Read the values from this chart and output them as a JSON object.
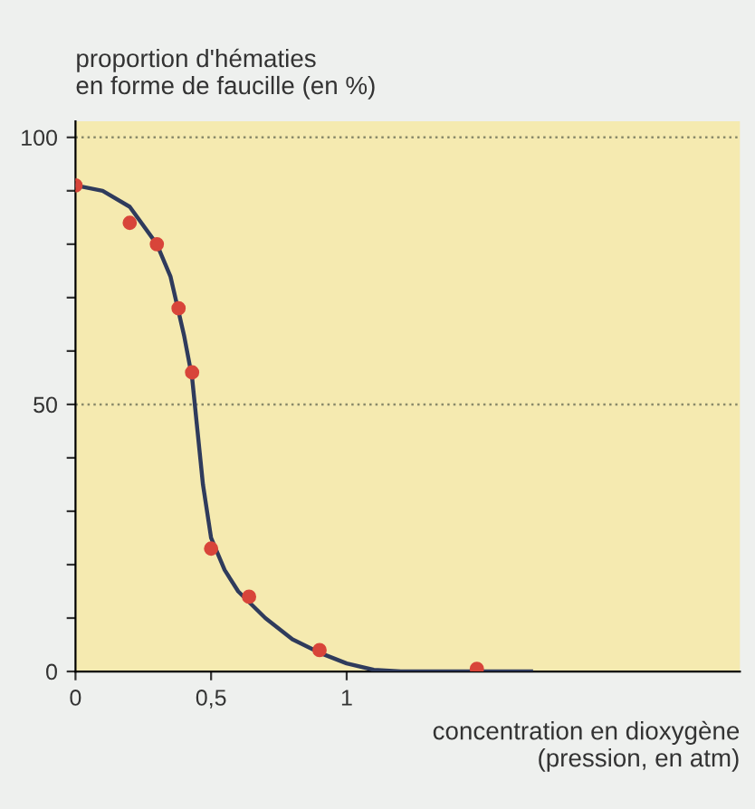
{
  "chart_data": {
    "type": "scatter",
    "ylabel": "proportion d'hématies\nen forme de faucille (en %)",
    "xlabel": "concentration en dioxygène\n(pression, en atm)",
    "xlim": [
      0,
      2.45
    ],
    "ylim": [
      0,
      103
    ],
    "xticks": [
      0,
      {
        "value": 0.5,
        "label": "0,5"
      },
      1
    ],
    "yticks": [
      0,
      {
        "value": 10,
        "label": null
      },
      {
        "value": 20,
        "label": null
      },
      {
        "value": 30,
        "label": null
      },
      {
        "value": 40,
        "label": null
      },
      50,
      {
        "value": 60,
        "label": null
      },
      {
        "value": 70,
        "label": null
      },
      {
        "value": 80,
        "label": null
      },
      {
        "value": 90,
        "label": null
      },
      100
    ],
    "ref_lines": [
      {
        "axis": "y",
        "value": 50,
        "label": null,
        "color": "#8a8a6a",
        "line_style": "dotted"
      },
      {
        "axis": "y",
        "value": 100,
        "label": null,
        "color": "#8a8a6a",
        "line_style": "dotted"
      }
    ],
    "series": [
      {
        "type": "line",
        "color": "#2f3b5c",
        "marker": "none",
        "line_style": "solid",
        "x": [
          0,
          0.1,
          0.2,
          0.3,
          0.35,
          0.4,
          0.43,
          0.45,
          0.47,
          0.5,
          0.55,
          0.6,
          0.7,
          0.8,
          0.9,
          1.0,
          1.1,
          1.2,
          1.5,
          1.68
        ],
        "values": [
          91,
          90,
          87,
          80,
          74,
          63,
          55,
          45,
          35,
          25,
          19,
          15,
          10,
          6,
          3.5,
          1.5,
          0.3,
          0,
          0,
          0
        ]
      },
      {
        "color": "#d8453a",
        "marker": "circle",
        "x": [
          0,
          0.2,
          0.3,
          0.38,
          0.43,
          0.5,
          0.64,
          0.9,
          1.48
        ],
        "values": [
          91,
          84,
          80,
          68,
          56,
          23,
          14,
          4,
          0.5
        ]
      }
    ]
  }
}
